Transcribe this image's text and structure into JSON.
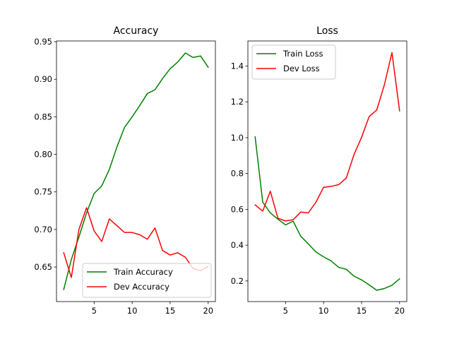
{
  "chart_data": [
    {
      "type": "line",
      "title": "Accuracy",
      "xlabel": "",
      "ylabel": "",
      "x": [
        1,
        2,
        3,
        4,
        5,
        6,
        7,
        8,
        9,
        10,
        11,
        12,
        13,
        14,
        15,
        16,
        17,
        18,
        19,
        20
      ],
      "xlim": [
        0.05,
        20.95
      ],
      "ylim": [
        0.604,
        0.951
      ],
      "xticks": [
        5,
        10,
        15,
        20
      ],
      "yticks": [
        0.65,
        0.7,
        0.75,
        0.8,
        0.85,
        0.9,
        0.95
      ],
      "ytick_labels": [
        "0.65",
        "0.70",
        "0.75",
        "0.80",
        "0.85",
        "0.90",
        "0.95"
      ],
      "grid": false,
      "legend_position": "lower-right",
      "series": [
        {
          "name": "Train Accuracy",
          "color": "#008000",
          "values": [
            0.62,
            0.66,
            0.69,
            0.722,
            0.748,
            0.758,
            0.78,
            0.81,
            0.836,
            0.85,
            0.865,
            0.881,
            0.886,
            0.901,
            0.914,
            0.923,
            0.935,
            0.929,
            0.931,
            0.916
          ]
        },
        {
          "name": "Dev Accuracy",
          "color": "#ff0000",
          "values": [
            0.669,
            0.636,
            0.7,
            0.729,
            0.698,
            0.684,
            0.714,
            0.705,
            0.696,
            0.696,
            0.693,
            0.687,
            0.702,
            0.672,
            0.666,
            0.669,
            0.663,
            0.648,
            0.645,
            0.651
          ]
        }
      ]
    },
    {
      "type": "line",
      "title": "Loss",
      "xlabel": "",
      "ylabel": "",
      "x": [
        1,
        2,
        3,
        4,
        5,
        6,
        7,
        8,
        9,
        10,
        11,
        12,
        13,
        14,
        15,
        16,
        17,
        18,
        19,
        20
      ],
      "xlim": [
        0.05,
        20.95
      ],
      "ylim": [
        0.085,
        1.54
      ],
      "xticks": [
        5,
        10,
        15,
        20
      ],
      "yticks": [
        0.2,
        0.4,
        0.6,
        0.8,
        1.0,
        1.2,
        1.4
      ],
      "ytick_labels": [
        "0.2",
        "0.4",
        "0.6",
        "0.8",
        "1.0",
        "1.2",
        "1.4"
      ],
      "grid": false,
      "legend_position": "upper-left",
      "series": [
        {
          "name": "Train Loss",
          "color": "#008000",
          "values": [
            1.005,
            0.64,
            0.58,
            0.545,
            0.513,
            0.534,
            0.45,
            0.407,
            0.362,
            0.335,
            0.312,
            0.276,
            0.265,
            0.227,
            0.206,
            0.178,
            0.148,
            0.158,
            0.176,
            0.212
          ]
        },
        {
          "name": "Dev Loss",
          "color": "#ff0000",
          "values": [
            0.625,
            0.59,
            0.701,
            0.55,
            0.535,
            0.542,
            0.585,
            0.58,
            0.64,
            0.723,
            0.728,
            0.738,
            0.775,
            0.905,
            1.002,
            1.118,
            1.155,
            1.295,
            1.475,
            1.15
          ]
        }
      ]
    }
  ]
}
